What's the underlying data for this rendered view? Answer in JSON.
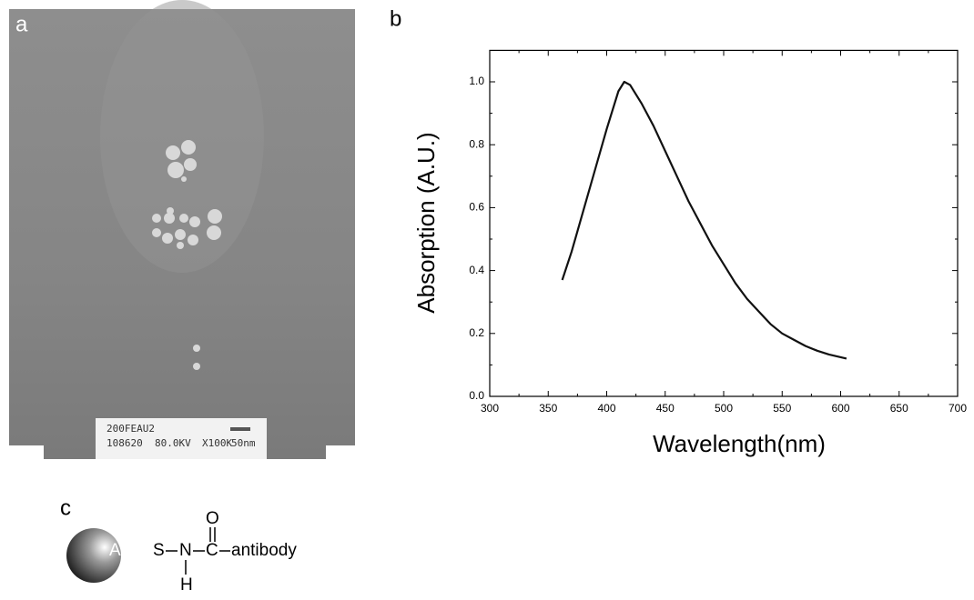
{
  "panel_labels": [
    "a",
    "b",
    "c"
  ],
  "micrograph": {
    "label_lines": [
      "200FEAU2",
      "108620",
      "80.0KV",
      "X100K",
      "50nm"
    ]
  },
  "chart_data": {
    "type": "line",
    "xlabel": "Wavelength(nm)",
    "ylabel": "Absorption (A.U.)",
    "x": [
      362,
      370,
      380,
      390,
      400,
      410,
      415,
      420,
      430,
      440,
      450,
      460,
      470,
      480,
      490,
      500,
      510,
      520,
      530,
      540,
      550,
      560,
      570,
      580,
      590,
      605
    ],
    "values": [
      0.37,
      0.46,
      0.59,
      0.72,
      0.85,
      0.97,
      1.0,
      0.99,
      0.93,
      0.86,
      0.78,
      0.7,
      0.62,
      0.55,
      0.48,
      0.42,
      0.36,
      0.31,
      0.27,
      0.23,
      0.2,
      0.18,
      0.16,
      0.145,
      0.133,
      0.12
    ],
    "color": "#111111",
    "xlim": [
      300,
      700
    ],
    "xticks": [
      300,
      350,
      400,
      450,
      500,
      550,
      600,
      650,
      700
    ],
    "ylim": [
      0,
      1.1
    ],
    "yticks": [
      {
        "value": 0,
        "label": "0.0"
      },
      0.2,
      0.4,
      0.6,
      0.8,
      {
        "value": 1,
        "label": "1.0"
      }
    ]
  },
  "molecule": {
    "core": "Ag",
    "atoms": [
      "S",
      "N",
      "H",
      "C",
      "O"
    ],
    "group": "antibody"
  }
}
